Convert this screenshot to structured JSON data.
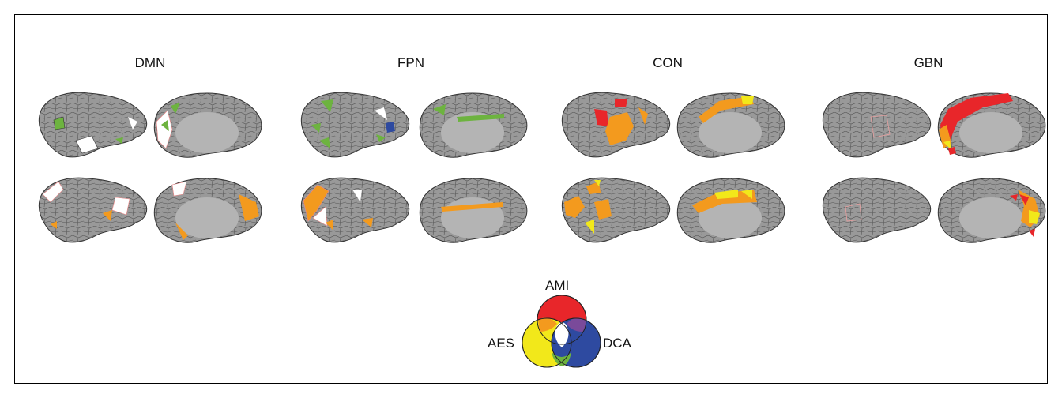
{
  "networks": [
    {
      "label": "DMN"
    },
    {
      "label": "FPN"
    },
    {
      "label": "CON"
    },
    {
      "label": "GBN"
    }
  ],
  "venn": {
    "labels": {
      "top": "AMI",
      "left": "AES",
      "right": "DCA"
    },
    "colors": {
      "AMI": "#e8262a",
      "AES": "#f2e81a",
      "DCA": "#2e4aa0",
      "AMI_AES": "#f39a1e",
      "AMI_DCA": "#7a4a9a",
      "AES_DCA": "#6db33f",
      "all": "#ffffff"
    }
  },
  "colors": {
    "cortex": "#999999",
    "medial_wall": "#b4b4b4",
    "green": "#6db33f",
    "orange": "#f39a1e",
    "red": "#e8262a",
    "yellow": "#f2e81a",
    "blue": "#2e4aa0"
  }
}
